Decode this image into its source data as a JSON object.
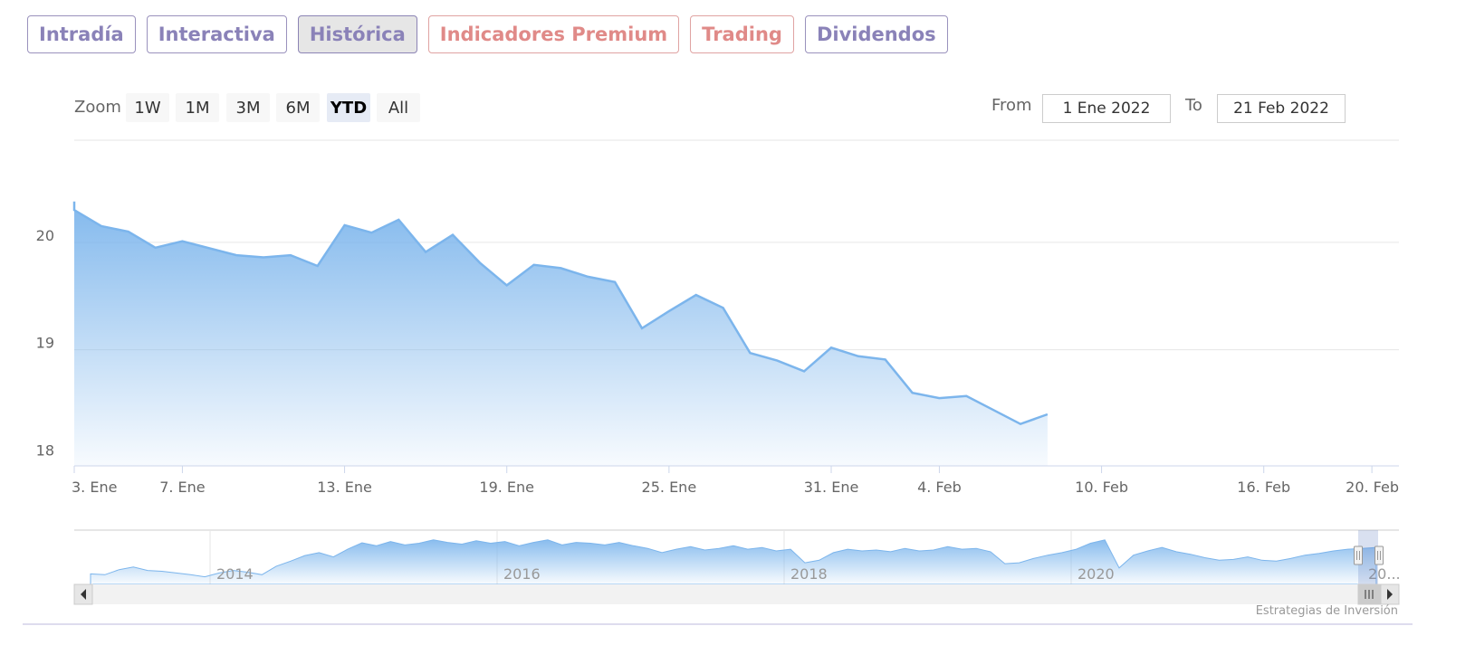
{
  "tabs": [
    {
      "label": "Intradía",
      "color": "purple",
      "active": false
    },
    {
      "label": "Interactiva",
      "color": "purple",
      "active": false
    },
    {
      "label": "Histórica",
      "color": "purple",
      "active": true
    },
    {
      "label": "Indicadores Premium",
      "color": "red",
      "active": false
    },
    {
      "label": "Trading",
      "color": "red",
      "active": false
    },
    {
      "label": "Dividendos",
      "color": "purple",
      "active": false
    }
  ],
  "range_selector": {
    "zoom_label": "Zoom",
    "buttons": [
      "1W",
      "1M",
      "3M",
      "6M",
      "YTD",
      "All"
    ],
    "selected": "YTD",
    "from_label": "From",
    "from_value": "1 Ene 2022",
    "to_label": "To",
    "to_value": "21 Feb 2022"
  },
  "credit": "Estrategias de Inversión",
  "colors": {
    "line": "#7cb5ec",
    "fill_top": "#7cb5ec",
    "grid": "#e6e6e6",
    "tab_purple": "#8a82b8",
    "tab_red": "#e08a88"
  },
  "chart_data": {
    "type": "area",
    "x_start": "2022-01-03",
    "x_end": "2022-02-21",
    "x_tick_labels": [
      {
        "date": "2022-01-03",
        "label": "3. Ene"
      },
      {
        "date": "2022-01-07",
        "label": "7. Ene"
      },
      {
        "date": "2022-01-13",
        "label": "13. Ene"
      },
      {
        "date": "2022-01-19",
        "label": "19. Ene"
      },
      {
        "date": "2022-01-25",
        "label": "25. Ene"
      },
      {
        "date": "2022-01-31",
        "label": "31. Ene"
      },
      {
        "date": "2022-02-04",
        "label": "4. Feb"
      },
      {
        "date": "2022-02-10",
        "label": "10. Feb"
      },
      {
        "date": "2022-02-16",
        "label": "16. Feb"
      },
      {
        "date": "2022-02-20",
        "label": "20. Feb"
      }
    ],
    "y_ticks": [
      18,
      19,
      20
    ],
    "ylim": [
      17.92,
      20.95
    ],
    "grid": true,
    "series": [
      {
        "points": [
          {
            "x": "2022-01-02",
            "y": 20.38
          },
          {
            "x": "2022-01-03",
            "y": 20.3
          },
          {
            "x": "2022-01-04",
            "y": 20.15
          },
          {
            "x": "2022-01-05",
            "y": 20.1
          },
          {
            "x": "2022-01-06",
            "y": 19.95
          },
          {
            "x": "2022-01-07",
            "y": 20.01
          },
          {
            "x": "2022-01-09",
            "y": 19.88
          },
          {
            "x": "2022-01-10",
            "y": 19.86
          },
          {
            "x": "2022-01-11",
            "y": 19.88
          },
          {
            "x": "2022-01-12",
            "y": 19.78
          },
          {
            "x": "2022-01-13",
            "y": 20.16
          },
          {
            "x": "2022-01-14",
            "y": 20.09
          },
          {
            "x": "2022-01-15",
            "y": 20.21
          },
          {
            "x": "2022-01-16",
            "y": 19.91
          },
          {
            "x": "2022-01-17",
            "y": 20.07
          },
          {
            "x": "2022-01-18",
            "y": 19.81
          },
          {
            "x": "2022-01-19",
            "y": 19.6
          },
          {
            "x": "2022-01-20",
            "y": 19.79
          },
          {
            "x": "2022-01-21",
            "y": 19.76
          },
          {
            "x": "2022-01-22",
            "y": 19.68
          },
          {
            "x": "2022-01-23",
            "y": 19.63
          },
          {
            "x": "2022-01-24",
            "y": 19.2
          },
          {
            "x": "2022-01-25",
            "y": 19.36
          },
          {
            "x": "2022-01-26",
            "y": 19.51
          },
          {
            "x": "2022-01-27",
            "y": 19.39
          },
          {
            "x": "2022-01-28",
            "y": 18.97
          },
          {
            "x": "2022-01-29",
            "y": 18.9
          },
          {
            "x": "2022-01-30",
            "y": 18.8
          },
          {
            "x": "2022-01-31",
            "y": 19.02
          },
          {
            "x": "2022-02-01",
            "y": 18.94
          },
          {
            "x": "2022-02-02",
            "y": 18.91
          },
          {
            "x": "2022-02-03",
            "y": 18.6
          },
          {
            "x": "2022-02-04",
            "y": 18.55
          },
          {
            "x": "2022-02-05",
            "y": 18.57
          },
          {
            "x": "2022-02-06",
            "y": 18.44
          },
          {
            "x": "2022-02-07",
            "y": 18.31
          },
          {
            "x": "2022-02-08",
            "y": 18.4
          }
        ]
      }
    ],
    "navigator": {
      "x_labels": [
        "2014",
        "2016",
        "2018",
        "2020",
        "20..."
      ],
      "values": [
        0.12,
        0.1,
        0.22,
        0.28,
        0.2,
        0.18,
        0.14,
        0.1,
        0.05,
        0.14,
        0.2,
        0.16,
        0.1,
        0.3,
        0.42,
        0.55,
        0.62,
        0.52,
        0.7,
        0.85,
        0.78,
        0.88,
        0.8,
        0.84,
        0.92,
        0.86,
        0.82,
        0.9,
        0.84,
        0.88,
        0.78,
        0.86,
        0.92,
        0.8,
        0.86,
        0.84,
        0.8,
        0.86,
        0.78,
        0.72,
        0.62,
        0.7,
        0.76,
        0.68,
        0.72,
        0.78,
        0.7,
        0.74,
        0.66,
        0.7,
        0.38,
        0.44,
        0.62,
        0.7,
        0.66,
        0.68,
        0.64,
        0.72,
        0.66,
        0.68,
        0.76,
        0.7,
        0.72,
        0.64,
        0.36,
        0.38,
        0.48,
        0.56,
        0.62,
        0.7,
        0.84,
        0.92,
        0.26,
        0.56,
        0.66,
        0.74,
        0.64,
        0.58,
        0.5,
        0.44,
        0.46,
        0.52,
        0.44,
        0.42,
        0.48,
        0.56,
        0.6,
        0.66,
        0.7,
        0.72,
        0.74
      ],
      "selection": {
        "from": "2022-01-03",
        "to": "2022-02-21"
      }
    }
  }
}
